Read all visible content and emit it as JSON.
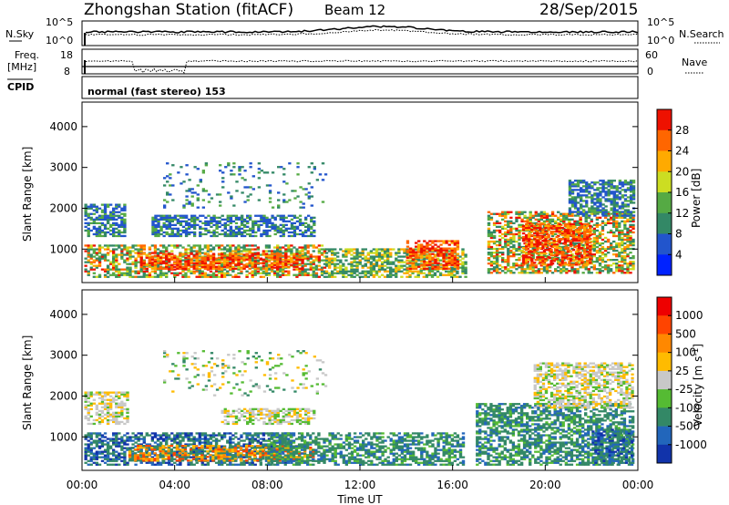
{
  "header": {
    "station": "Zhongshan Station (fitACF)",
    "beam": "Beam 12",
    "date": "28/Sep/2015"
  },
  "summary_panels": {
    "nsky": {
      "label": "N.Sky",
      "top": "10^5",
      "bottom": "10^0"
    },
    "nsearch": {
      "label": "N.Search",
      "top": "10^5",
      "bottom": "10^0"
    },
    "freq": {
      "label_line1": "Freq.",
      "label_line2": "[MHz]",
      "top": "18",
      "bottom": "8"
    },
    "nave": {
      "label": "Nave",
      "top": "60",
      "bottom": "0"
    },
    "cpid": {
      "label": "CPID",
      "value": "normal (fast stereo) 153"
    }
  },
  "chart_data": [
    {
      "type": "heatmap",
      "title": "",
      "xlabel": "",
      "ylabel": "Slant Range [km]",
      "x_ticks": [
        "00:00",
        "04:00",
        "08:00",
        "12:00",
        "16:00",
        "20:00",
        "00:00"
      ],
      "y_ticks": [
        "1000",
        "2000",
        "3000",
        "4000"
      ],
      "xlim": [
        0,
        24
      ],
      "ylim": [
        180,
        4600
      ],
      "colorbar": {
        "label": "Power [dB]",
        "ticks": [
          "4",
          "8",
          "12",
          "16",
          "20",
          "24",
          "28"
        ],
        "range": [
          0,
          32
        ],
        "colors": [
          "#0022ff",
          "#2255cc",
          "#338866",
          "#55aa44",
          "#ccdd22",
          "#ffaa00",
          "#ff6600",
          "#ee1100"
        ]
      },
      "blobs": [
        {
          "t0": 0.1,
          "t1": 10.5,
          "r0": 300,
          "r1": 1100,
          "class": "high"
        },
        {
          "t0": 2.5,
          "t1": 9.5,
          "r0": 500,
          "r1": 900,
          "class": "strong"
        },
        {
          "t0": 10.5,
          "t1": 16.5,
          "r0": 300,
          "r1": 1000,
          "class": "mid"
        },
        {
          "t0": 14.0,
          "t1": 16.2,
          "r0": 500,
          "r1": 1200,
          "class": "strong"
        },
        {
          "t0": 17.5,
          "t1": 23.8,
          "r0": 400,
          "r1": 1900,
          "class": "high"
        },
        {
          "t0": 19.0,
          "t1": 22.0,
          "r0": 600,
          "r1": 1600,
          "class": "strong"
        },
        {
          "t0": 0.1,
          "t1": 1.8,
          "r0": 1300,
          "r1": 2100,
          "class": "low"
        },
        {
          "t0": 3.0,
          "t1": 10.0,
          "r0": 1300,
          "r1": 1800,
          "class": "low"
        },
        {
          "t0": 21.0,
          "t1": 23.8,
          "r0": 1800,
          "r1": 2700,
          "class": "low"
        },
        {
          "t0": 3.5,
          "t1": 10.5,
          "r0": 2000,
          "r1": 3100,
          "class": "sparse"
        }
      ]
    },
    {
      "type": "heatmap",
      "title": "",
      "xlabel": "Time UT",
      "ylabel": "Slant Range [km]",
      "x_ticks": [
        "00:00",
        "04:00",
        "08:00",
        "12:00",
        "16:00",
        "20:00",
        "00:00"
      ],
      "y_ticks": [
        "1000",
        "2000",
        "3000",
        "4000"
      ],
      "xlim": [
        0,
        24
      ],
      "ylim": [
        180,
        4600
      ],
      "colorbar": {
        "label": "Velocity [m s^-1]",
        "label_main": "Velocity [m s",
        "label_exp": "-1",
        "label_close": "]",
        "ticks": [
          "1000",
          "500",
          "100",
          "25",
          "-25",
          "-100",
          "-500",
          "-1000"
        ],
        "colors": [
          "#1133aa",
          "#2266bb",
          "#338866",
          "#55bb33",
          "#c8c8c8",
          "#ffbb00",
          "#ff8800",
          "#ff4400",
          "#ee0000"
        ]
      },
      "blobs": [
        {
          "t0": 0.1,
          "t1": 9.0,
          "r0": 300,
          "r1": 1100,
          "class": "blue"
        },
        {
          "t0": 2.0,
          "t1": 10.0,
          "r0": 400,
          "r1": 800,
          "class": "orange"
        },
        {
          "t0": 8.0,
          "t1": 16.5,
          "r0": 300,
          "r1": 1100,
          "class": "green"
        },
        {
          "t0": 17.0,
          "t1": 23.8,
          "r0": 300,
          "r1": 1800,
          "class": "green"
        },
        {
          "t0": 22.0,
          "t1": 23.8,
          "r0": 300,
          "r1": 1200,
          "class": "blue"
        },
        {
          "t0": 0.1,
          "t1": 2.0,
          "r0": 1300,
          "r1": 2100,
          "class": "grey"
        },
        {
          "t0": 6.0,
          "t1": 10.0,
          "r0": 1300,
          "r1": 1700,
          "class": "grey"
        },
        {
          "t0": 19.5,
          "t1": 23.8,
          "r0": 1700,
          "r1": 2800,
          "class": "grey"
        },
        {
          "t0": 3.5,
          "t1": 10.5,
          "r0": 2000,
          "r1": 3100,
          "class": "sparse"
        }
      ]
    }
  ]
}
